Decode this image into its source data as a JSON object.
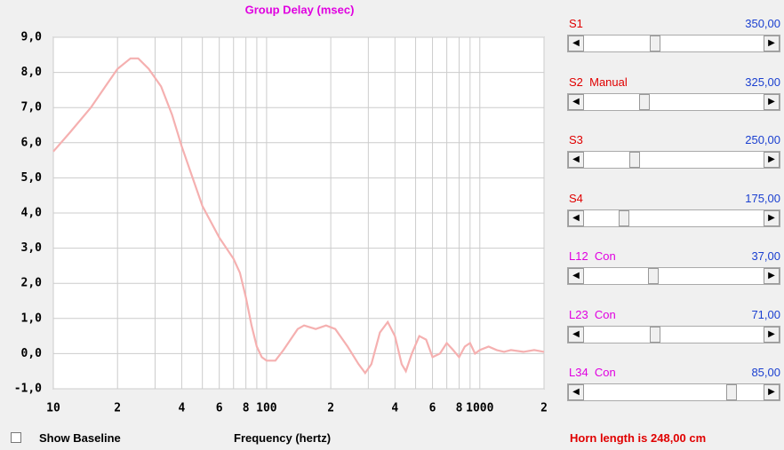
{
  "chart_data": {
    "type": "line",
    "title": "Group Delay (msec)",
    "x_label": "Frequency (hertz)",
    "log_x": true,
    "grid": true,
    "xlim": [
      10,
      2000
    ],
    "ylim": [
      -1,
      9
    ],
    "xticks": [
      10,
      {
        "value": 20,
        "label": "2"
      },
      {
        "value": 40,
        "label": "4"
      },
      {
        "value": 60,
        "label": "6"
      },
      {
        "value": 80,
        "label": "8"
      },
      100,
      {
        "value": 200,
        "label": "2"
      },
      {
        "value": 400,
        "label": "4"
      },
      {
        "value": 600,
        "label": "6"
      },
      {
        "value": 800,
        "label": "8"
      },
      1000,
      {
        "value": 2000,
        "label": "2"
      }
    ],
    "xgrid_minor": [
      30,
      50,
      70,
      90,
      300,
      500,
      700,
      900
    ],
    "yticks": [
      {
        "value": -1,
        "label": "-1,0"
      },
      {
        "value": 0,
        "label": "0,0"
      },
      {
        "value": 1,
        "label": "1,0"
      },
      {
        "value": 2,
        "label": "2,0"
      },
      {
        "value": 3,
        "label": "3,0"
      },
      {
        "value": 4,
        "label": "4,0"
      },
      {
        "value": 5,
        "label": "5,0"
      },
      {
        "value": 6,
        "label": "6,0"
      },
      {
        "value": 7,
        "label": "7,0"
      },
      {
        "value": 8,
        "label": "8,0"
      },
      {
        "value": 9,
        "label": "9,0"
      }
    ],
    "series": [
      {
        "color": "#f5b0b0",
        "x": [
          10,
          12,
          15,
          18,
          20,
          23,
          25,
          28,
          32,
          36,
          40,
          45,
          50,
          60,
          70,
          75,
          80,
          85,
          90,
          95,
          100,
          110,
          120,
          140,
          150,
          170,
          190,
          210,
          240,
          270,
          290,
          310,
          340,
          370,
          400,
          430,
          450,
          480,
          520,
          560,
          600,
          650,
          700,
          750,
          800,
          850,
          900,
          950,
          1000,
          1100,
          1200,
          1300,
          1400,
          1600,
          1800,
          2000
        ],
        "values": [
          5.75,
          6.3,
          7.0,
          7.7,
          8.1,
          8.4,
          8.4,
          8.1,
          7.6,
          6.8,
          5.9,
          5.0,
          4.2,
          3.3,
          2.7,
          2.3,
          1.6,
          0.8,
          0.2,
          -0.1,
          -0.2,
          -0.2,
          0.1,
          0.7,
          0.8,
          0.7,
          0.8,
          0.7,
          0.2,
          -0.3,
          -0.55,
          -0.3,
          0.6,
          0.9,
          0.5,
          -0.3,
          -0.5,
          0.0,
          0.5,
          0.4,
          -0.1,
          0.0,
          0.3,
          0.1,
          -0.1,
          0.2,
          0.3,
          0.0,
          0.1,
          0.2,
          0.1,
          0.05,
          0.1,
          0.05,
          0.1,
          0.05
        ]
      }
    ]
  },
  "controls": {
    "sliders": [
      {
        "label": "S1",
        "label_color": "#e00000",
        "value": 350,
        "value_label": "350,00"
      },
      {
        "label": "S2  Manual",
        "label_color": "#e00000",
        "value": 325,
        "value_label": "325,00"
      },
      {
        "label": "S3",
        "label_color": "#e00000",
        "value": 250,
        "value_label": "250,00"
      },
      {
        "label": "S4",
        "label_color": "#e00000",
        "value": 175,
        "value_label": "175,00"
      },
      {
        "label": "L12  Con",
        "label_color": "#e000e0",
        "value": 37,
        "value_label": "37,00"
      },
      {
        "label": "L23  Con",
        "label_color": "#e000e0",
        "value": 71,
        "value_label": "71,00"
      },
      {
        "label": "L34  Con",
        "label_color": "#e000e0",
        "value": 85,
        "value_label": "85,00"
      }
    ],
    "checkbox": "Show Baseline",
    "status": "Horn length is 248,00 cm"
  }
}
